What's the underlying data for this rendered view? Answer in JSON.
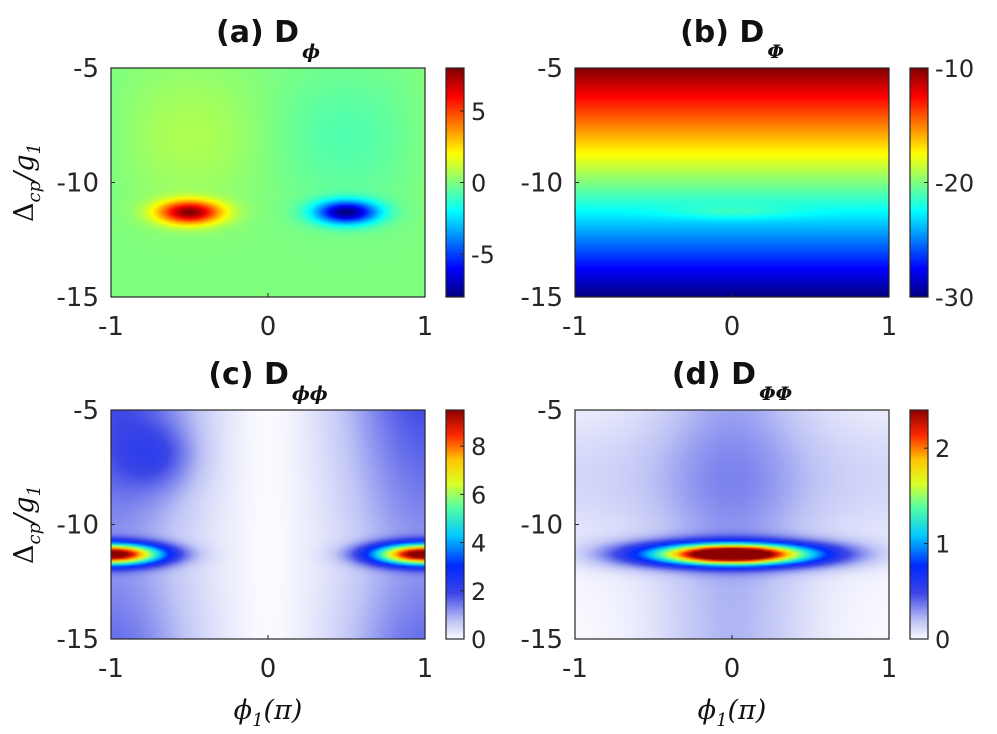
{
  "chart_data": [
    {
      "type": "heatmap",
      "title": "(a) D",
      "title_subscript": "ϕ",
      "xlabel": "",
      "ylabel": "Δ",
      "ylabel_subscript": "cp",
      "ylabel_suffix": "/g",
      "ylabel_suffix_subscript": "1",
      "xlim": [
        -1,
        1
      ],
      "ylim": [
        -15,
        -5
      ],
      "xticks": [
        "-1",
        "0",
        "1"
      ],
      "yticks": [
        "-5",
        "-10",
        "-15"
      ],
      "colormap": "jet",
      "clim": [
        -8,
        8
      ],
      "colorbar_ticks": [
        "5",
        "0",
        "-5"
      ],
      "colorbar_tick_values": [
        5,
        0,
        -5
      ],
      "pattern": "antisymmetric-phi-lobes",
      "features": [
        {
          "phi": -0.5,
          "delta": -11.3,
          "value": 7.8
        },
        {
          "phi": 0.5,
          "delta": -11.3,
          "value": -7.8
        }
      ]
    },
    {
      "type": "heatmap",
      "title": "(b) D",
      "title_subscript": "Φ",
      "xlabel": "",
      "ylabel": "",
      "xlim": [
        -1,
        1
      ],
      "ylim": [
        -15,
        -5
      ],
      "xticks": [
        "-1",
        "0",
        "1"
      ],
      "yticks": [
        "-5",
        "-10",
        "-15"
      ],
      "colormap": "jet",
      "clim": [
        -30,
        -10
      ],
      "colorbar_ticks": [
        "-10",
        "-20",
        "-30"
      ],
      "colorbar_tick_values": [
        -10,
        -20,
        -30
      ],
      "pattern": "vertical-gradient",
      "features": [
        {
          "delta": -5,
          "value": -10
        },
        {
          "delta": -15,
          "value": -30
        }
      ]
    },
    {
      "type": "heatmap",
      "title": "(c) D",
      "title_subscript": "ϕϕ",
      "xlabel": "ϕ",
      "xlabel_subscript": "1",
      "xlabel_suffix": "(π)",
      "ylabel": "Δ",
      "ylabel_subscript": "cp",
      "ylabel_suffix": "/g",
      "ylabel_suffix_subscript": "1",
      "xlim": [
        -1,
        1
      ],
      "ylim": [
        -15,
        -5
      ],
      "xticks": [
        "-1",
        "0",
        "1"
      ],
      "yticks": [
        "-5",
        "-10",
        "-15"
      ],
      "colormap": "white-jet",
      "clim": [
        0,
        9.5
      ],
      "colorbar_ticks": [
        "8",
        "6",
        "4",
        "2",
        "0"
      ],
      "colorbar_tick_values": [
        8,
        6,
        4,
        2,
        0
      ],
      "pattern": "edge-lobes",
      "features": [
        {
          "phi": -1,
          "delta": -11.3,
          "value": 9.3
        },
        {
          "phi": 1,
          "delta": -11.3,
          "value": 9.3
        }
      ]
    },
    {
      "type": "heatmap",
      "title": "(d) D",
      "title_subscript": "ΦΦ",
      "xlabel": "ϕ",
      "xlabel_subscript": "1",
      "xlabel_suffix": "(π)",
      "ylabel": "",
      "xlim": [
        -1,
        1
      ],
      "ylim": [
        -15,
        -5
      ],
      "xticks": [
        "-1",
        "0",
        "1"
      ],
      "yticks": [
        "-5",
        "-10",
        "-15"
      ],
      "colormap": "white-jet",
      "clim": [
        0,
        2.4
      ],
      "colorbar_ticks": [
        "2",
        "1",
        "0"
      ],
      "colorbar_tick_values": [
        2,
        1,
        0
      ],
      "pattern": "center-lobe",
      "features": [
        {
          "phi": 0,
          "delta": -11.3,
          "value": 2.35
        }
      ]
    }
  ]
}
